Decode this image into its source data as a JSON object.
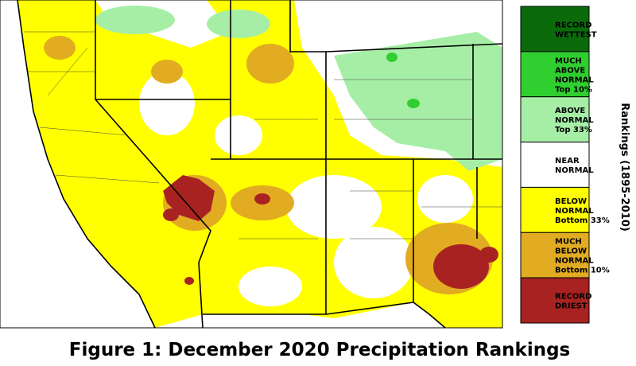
{
  "map": {
    "caption": "Figure 1: December 2020 Precipitation Rankings",
    "legend": {
      "title": "Rankings (1895-2010)",
      "items": [
        {
          "lines": [
            "RECORD",
            "WETTEST"
          ],
          "color": "#0b6b0b"
        },
        {
          "lines": [
            "MUCH",
            "ABOVE",
            "NORMAL",
            "Top 10%"
          ],
          "color": "#2fcf2f"
        },
        {
          "lines": [
            "ABOVE",
            "NORMAL",
            "Top 33%"
          ],
          "color": "#a6eea6"
        },
        {
          "lines": [
            "NEAR",
            "NORMAL"
          ],
          "color": "#ffffff"
        },
        {
          "lines": [
            "BELOW",
            "NORMAL",
            "Bottom 33%"
          ],
          "color": "#ffff00"
        },
        {
          "lines": [
            "MUCH",
            "BELOW",
            "NORMAL",
            "Bottom 10%"
          ],
          "color": "#e2ac22"
        },
        {
          "lines": [
            "RECORD",
            "DRIEST"
          ],
          "color": "#a82222"
        }
      ]
    }
  }
}
